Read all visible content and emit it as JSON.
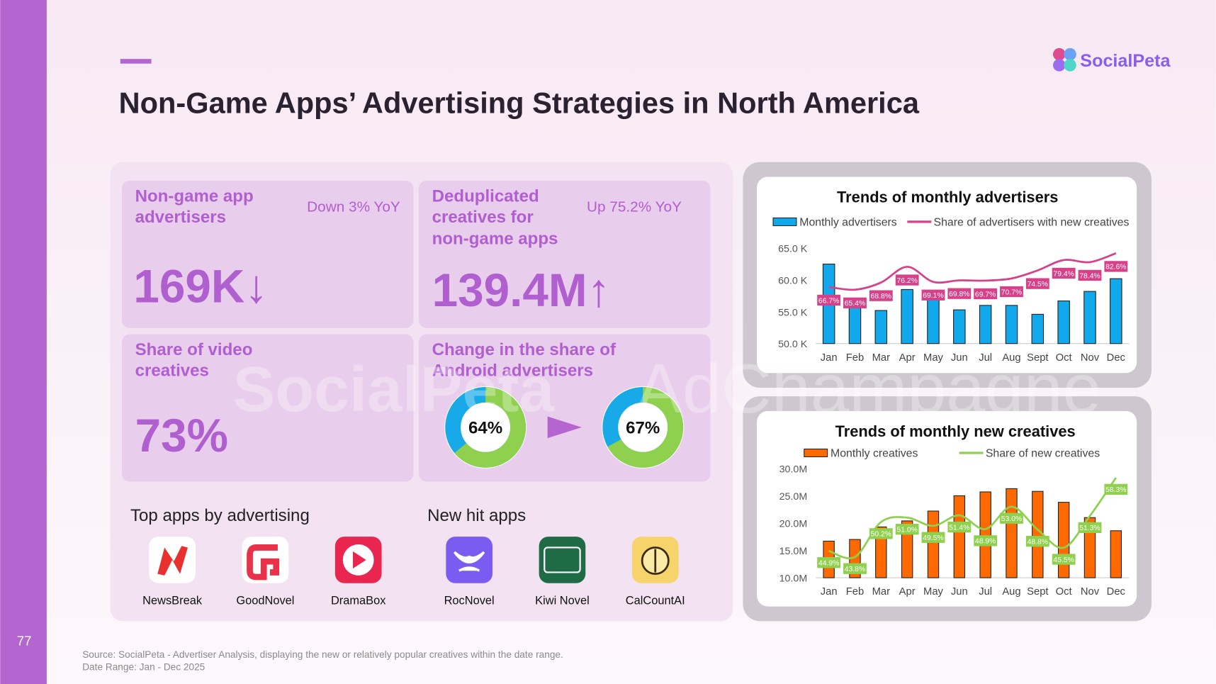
{
  "header": {
    "title": "Non-Game Apps’ Advertising Strategies in North America",
    "logo": "SocialPeta",
    "page_number": "77"
  },
  "watermark": [
    "SocialPeta",
    "AdChampagne"
  ],
  "kpis": [
    {
      "title": [
        "Non-game app",
        "advertisers"
      ],
      "change": "Down 3% YoY",
      "value": "169K↓"
    },
    {
      "title": [
        "Deduplicated",
        "creatives for",
        "non-game apps"
      ],
      "change": "Up 75.2% YoY",
      "value": "139.4M↑"
    },
    {
      "title": [
        "Share of video",
        "creatives"
      ],
      "value": "73%"
    },
    {
      "title": [
        "Change in the share of",
        "Android advertisers"
      ]
    }
  ],
  "android_share": {
    "values": [
      64,
      67
    ],
    "value_labels": [
      "64%",
      "67%"
    ],
    "colors": [
      "#8fd14f",
      "#17a9e8"
    ]
  },
  "top_apps": {
    "heading": "Top apps by advertising",
    "apps": [
      "NewsBreak",
      "GoodNovel",
      "DramaBox"
    ]
  },
  "new_hit_apps": {
    "heading": "New hit apps",
    "apps": [
      "RocNovel",
      "Kiwi Novel",
      "CalCountAI"
    ]
  },
  "footer": {
    "source": "Source: SocialPeta - Advertiser Analysis, displaying the new or relatively popular creatives within the date range.",
    "date_range": "Date Range: Jan - Dec 2025"
  },
  "chart_data": [
    {
      "type": "bar",
      "title": "Trends of monthly advertisers",
      "categories": [
        "Jan",
        "Feb",
        "Mar",
        "Apr",
        "May",
        "Jun",
        "Jul",
        "Aug",
        "Sept",
        "Oct",
        "Nov",
        "Dec"
      ],
      "ylim": [
        50,
        65
      ],
      "yticks": [
        {
          "value": 50,
          "label": "50.0 K"
        },
        {
          "value": 55,
          "label": "55.0 K"
        },
        {
          "value": 60,
          "label": "60.0 K"
        },
        {
          "value": 65,
          "label": "65.0 K"
        }
      ],
      "y2lim": [
        40,
        85
      ],
      "grid": false,
      "series": [
        {
          "name": "Monthly advertisers",
          "type": "bar",
          "color": "#12a8ec",
          "values": [
            62.5,
            55.8,
            55.2,
            58.5,
            57.2,
            55.3,
            56.0,
            56.0,
            54.6,
            56.7,
            58.2,
            60.2
          ]
        },
        {
          "name": "Share of advertisers with new creatives",
          "type": "line",
          "axis": "y2",
          "color": "#d6418a",
          "values": [
            66.7,
            65.4,
            68.8,
            76.2,
            69.1,
            69.8,
            69.7,
            70.7,
            74.5,
            79.4,
            78.4,
            82.6
          ],
          "value_labels": [
            "66.7%",
            "65.4%",
            "68.8%",
            "76.2%",
            "69.1%",
            "69.8%",
            "69.7%",
            "70.7%",
            "74.5%",
            "79.4%",
            "78.4%",
            "82.6%"
          ]
        }
      ]
    },
    {
      "type": "bar",
      "title": "Trends of monthly new creatives",
      "categories": [
        "Jan",
        "Feb",
        "Mar",
        "Apr",
        "May",
        "Jun",
        "Jul",
        "Aug",
        "Sept",
        "Oct",
        "Nov",
        "Dec"
      ],
      "ylim": [
        10,
        30
      ],
      "yticks": [
        {
          "value": 10,
          "label": "10.0M"
        },
        {
          "value": 15,
          "label": "15.0M"
        },
        {
          "value": 20,
          "label": "20.0M"
        },
        {
          "value": 25,
          "label": "25.0M"
        },
        {
          "value": 30,
          "label": "30.0M"
        }
      ],
      "y2lim": [
        40,
        60
      ],
      "grid": false,
      "series": [
        {
          "name": "Monthly creatives",
          "type": "bar",
          "color": "#ff6a00",
          "values": [
            16.7,
            17.0,
            19.3,
            20.4,
            22.2,
            25.0,
            25.7,
            26.3,
            25.8,
            23.8,
            21.0,
            18.6
          ]
        },
        {
          "name": "Share of new creatives",
          "type": "line",
          "axis": "y2",
          "color": "#8fd14f",
          "values": [
            44.9,
            43.8,
            50.2,
            51.0,
            49.5,
            51.4,
            48.9,
            53.0,
            48.8,
            45.5,
            51.3,
            58.3
          ],
          "value_labels": [
            "44.9%",
            "43.8%",
            "50.2%",
            "51.0%",
            "49.5%",
            "51.4%",
            "48.9%",
            "53.0%",
            "48.8%",
            "45.5%",
            "51.3%",
            "58.3%"
          ]
        }
      ]
    }
  ]
}
